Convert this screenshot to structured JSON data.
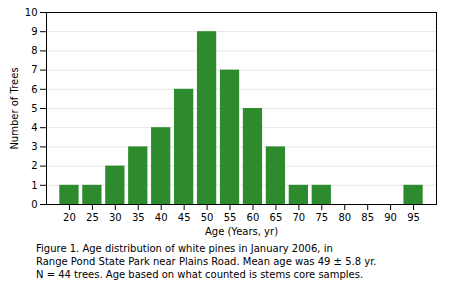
{
  "chart_data": {
    "type": "bar",
    "title": "Figure 1. Age distribution of white pines in January 2006, in\nRange Pond State Park near Plains Road. Mean age was 49 ± 5.8 yr.\nN = 44 trees. Age based on what counted is stems core samples.",
    "x_label": "Age (Years, yr)",
    "y_label": "Number of Trees",
    "x": [
      20,
      25,
      30,
      35,
      40,
      45,
      50,
      55,
      60,
      65,
      70,
      75,
      80,
      85,
      90,
      95
    ],
    "values": [
      1,
      1,
      2,
      3,
      4,
      6,
      9,
      7,
      5,
      3,
      1,
      1,
      0,
      0,
      0,
      1
    ],
    "color": "#2d8a2d",
    "xlim": [
      15,
      100
    ],
    "xticks": [
      20,
      25,
      30,
      35,
      40,
      45,
      50,
      55,
      60,
      65,
      70,
      75,
      80,
      85,
      90,
      95
    ],
    "ylim": [
      0,
      10
    ],
    "yticks": [
      0,
      1,
      2,
      3,
      4,
      5,
      6,
      7,
      8,
      9,
      10
    ],
    "grid": true
  }
}
